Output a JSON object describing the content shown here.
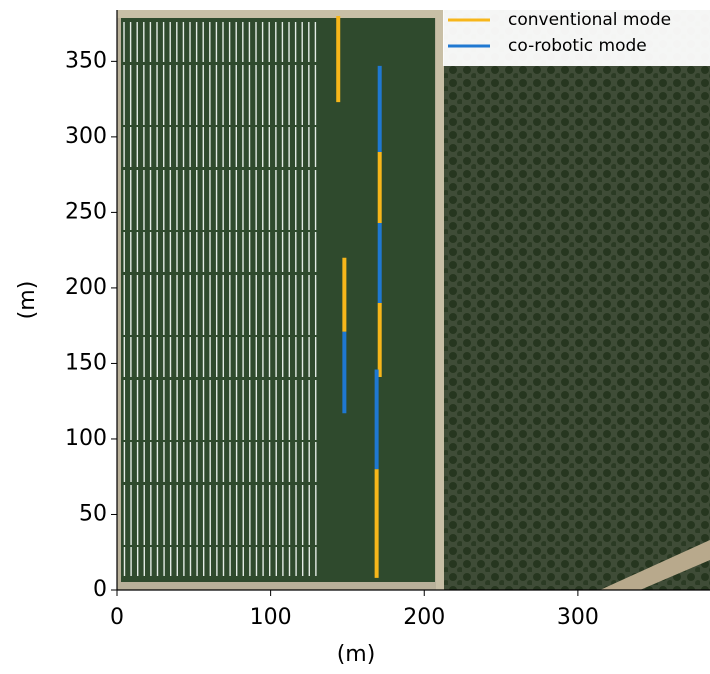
{
  "chart_data": {
    "type": "line",
    "xlabel": "(m)",
    "ylabel": "(m)",
    "xlim": [
      0,
      386
    ],
    "ylim": [
      0,
      384
    ],
    "xticks": [
      0,
      100,
      200,
      300
    ],
    "yticks": [
      0,
      50,
      100,
      150,
      200,
      250,
      300,
      350
    ],
    "legend": "upper right",
    "series": [
      {
        "name": "conventional mode",
        "color": "#f7b61a",
        "x": [
          144,
          144,
          null,
          148,
          148,
          null,
          171,
          171,
          null,
          171,
          171,
          null,
          169,
          169
        ],
        "values": [
          323,
          380,
          null,
          171,
          220,
          null,
          243,
          290,
          null,
          141,
          190,
          null,
          8,
          80
        ]
      },
      {
        "name": "co-robotic mode",
        "color": "#1f78d1",
        "x": [
          171,
          171,
          null,
          171,
          171,
          null,
          148,
          148,
          null,
          169,
          169
        ],
        "values": [
          290,
          347,
          null,
          190,
          243,
          null,
          117,
          171,
          null,
          80,
          146
        ]
      }
    ]
  }
}
